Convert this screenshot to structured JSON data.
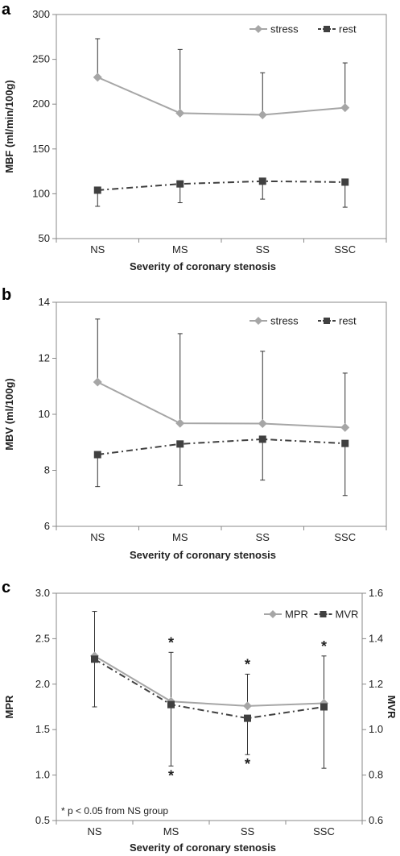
{
  "chart_data": [
    {
      "panel": "a",
      "type": "line",
      "categories": [
        "NS",
        "MS",
        "SS",
        "SSC"
      ],
      "xlabel": "Severity of coronary stenosis",
      "ylabel": "MBF (ml/min/100g)",
      "ylim": [
        50,
        300
      ],
      "yticks": [
        50,
        100,
        150,
        200,
        250,
        300
      ],
      "ytick_labels": [
        "50",
        "100",
        "150",
        "200",
        "250",
        "300"
      ],
      "legend": "top-right",
      "grid": false,
      "series": [
        {
          "name": "stress",
          "color": "#a6a6a6",
          "marker": "diamond",
          "line": "solid",
          "values": [
            230,
            190,
            188,
            196
          ],
          "err_up": [
            273,
            261,
            235,
            246
          ],
          "err_down": [
            null,
            null,
            null,
            null
          ]
        },
        {
          "name": "rest",
          "color": "#404040",
          "marker": "square",
          "line": "dashdot",
          "values": [
            104,
            111,
            114,
            113
          ],
          "err_up": [
            null,
            null,
            null,
            null
          ],
          "err_down": [
            86,
            90,
            94,
            85
          ]
        }
      ]
    },
    {
      "panel": "b",
      "type": "line",
      "categories": [
        "NS",
        "MS",
        "SS",
        "SSC"
      ],
      "xlabel": "Severity of coronary stenosis",
      "ylabel": "MBV (ml/100g)",
      "ylim": [
        6,
        14
      ],
      "yticks": [
        6,
        8,
        10,
        12,
        14
      ],
      "ytick_labels": [
        "6",
        "8",
        "10",
        "12",
        "14"
      ],
      "legend": "top-right",
      "grid": false,
      "series": [
        {
          "name": "stress",
          "color": "#a6a6a6",
          "marker": "diamond",
          "line": "solid",
          "values": [
            11.15,
            9.68,
            9.67,
            9.53
          ],
          "err_up": [
            13.4,
            12.88,
            12.25,
            11.47
          ],
          "err_down": [
            null,
            null,
            null,
            null
          ]
        },
        {
          "name": "rest",
          "color": "#404040",
          "marker": "square",
          "line": "dashdot",
          "values": [
            8.56,
            8.94,
            9.11,
            8.96
          ],
          "err_up": [
            null,
            null,
            null,
            null
          ],
          "err_down": [
            7.42,
            7.46,
            7.65,
            7.1
          ]
        }
      ]
    },
    {
      "panel": "c",
      "type": "line",
      "categories": [
        "NS",
        "MS",
        "SS",
        "SSC"
      ],
      "xlabel": "Severity of coronary stenosis",
      "ylabel": "MPR",
      "ylabel_right": "MVR",
      "ylim": [
        0.5,
        3.0
      ],
      "yticks": [
        0.5,
        1.0,
        1.5,
        2.0,
        2.5,
        3.0
      ],
      "ytick_labels": [
        "0.5",
        "1.0",
        "1.5",
        "2.0",
        "2.5",
        "3.0"
      ],
      "ylim_right": [
        0.6,
        1.6
      ],
      "yticks_right": [
        0.6,
        0.8,
        1.0,
        1.2,
        1.4,
        1.6
      ],
      "ytick_labels_right": [
        "0.6",
        "0.8",
        "1.0",
        "1.2",
        "1.4",
        "1.6"
      ],
      "legend": "top-right",
      "grid": false,
      "annotation": "* p < 0.05 from NS group",
      "series": [
        {
          "name": "MPR",
          "axis": "left",
          "color": "#a6a6a6",
          "marker": "diamond",
          "line": "solid",
          "values": [
            2.31,
            1.81,
            1.76,
            1.79
          ],
          "err_up": [
            2.8,
            2.35,
            2.11,
            2.31
          ],
          "err_down": [
            null,
            null,
            null,
            null
          ],
          "sig": [
            false,
            true,
            true,
            true
          ]
        },
        {
          "name": "MVR",
          "axis": "right",
          "color": "#404040",
          "marker": "square",
          "line": "dashdot",
          "values": [
            1.31,
            1.11,
            1.05,
            1.1
          ],
          "err_up": [
            null,
            null,
            null,
            null
          ],
          "err_down": [
            1.1,
            0.84,
            0.89,
            0.83
          ],
          "sig": [
            false,
            true,
            true,
            false
          ]
        }
      ]
    }
  ]
}
